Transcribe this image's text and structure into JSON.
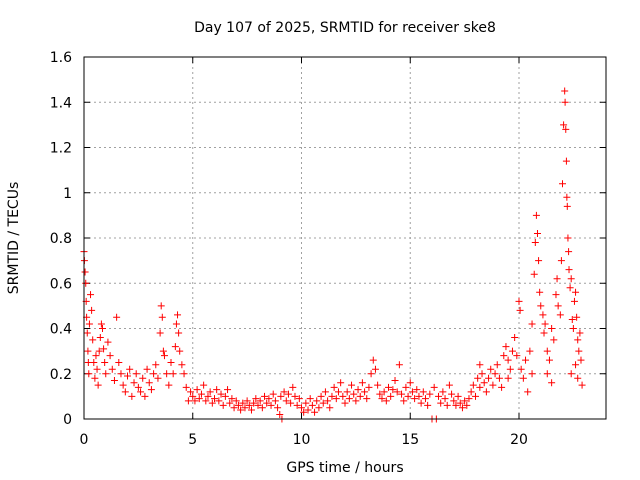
{
  "chart_data": {
    "type": "scatter",
    "title": "Day 107 of 2025, SRMTID for receiver ske8",
    "xlabel": "GPS time / hours",
    "ylabel": "SRMTID / TECUs",
    "xlim": [
      0,
      24
    ],
    "ylim": [
      0,
      1.6
    ],
    "xticks": [
      0,
      5,
      10,
      15,
      20
    ],
    "xtick_labels": [
      "0",
      "5",
      "10",
      "15",
      "20"
    ],
    "yticks": [
      0,
      0.2,
      0.4,
      0.6,
      0.8,
      1,
      1.2,
      1.4,
      1.6
    ],
    "ytick_labels": [
      "0",
      "0.2",
      "0.4",
      "0.6",
      "0.8",
      "1",
      "1.2",
      "1.4",
      "1.6"
    ],
    "grid": true,
    "marker": "+",
    "color": "#ff0000",
    "series": [
      {
        "name": "SRMTID",
        "points": [
          [
            0.0,
            0.74
          ],
          [
            0.02,
            0.7
          ],
          [
            0.05,
            0.65
          ],
          [
            0.08,
            0.6
          ],
          [
            0.1,
            0.52
          ],
          [
            0.12,
            0.45
          ],
          [
            0.15,
            0.38
          ],
          [
            0.18,
            0.3
          ],
          [
            0.2,
            0.25
          ],
          [
            0.22,
            0.2
          ],
          [
            0.25,
            0.42
          ],
          [
            0.3,
            0.55
          ],
          [
            0.35,
            0.48
          ],
          [
            0.4,
            0.35
          ],
          [
            0.45,
            0.25
          ],
          [
            0.5,
            0.18
          ],
          [
            0.55,
            0.28
          ],
          [
            0.6,
            0.22
          ],
          [
            0.65,
            0.15
          ],
          [
            0.7,
            0.3
          ],
          [
            0.75,
            0.36
          ],
          [
            0.8,
            0.42
          ],
          [
            0.85,
            0.4
          ],
          [
            0.9,
            0.31
          ],
          [
            0.95,
            0.25
          ],
          [
            1.0,
            0.2
          ],
          [
            1.1,
            0.34
          ],
          [
            1.2,
            0.28
          ],
          [
            1.3,
            0.22
          ],
          [
            1.4,
            0.17
          ],
          [
            1.5,
            0.45
          ],
          [
            1.6,
            0.25
          ],
          [
            1.7,
            0.2
          ],
          [
            1.8,
            0.15
          ],
          [
            1.9,
            0.12
          ],
          [
            2.0,
            0.19
          ],
          [
            2.1,
            0.22
          ],
          [
            2.2,
            0.1
          ],
          [
            2.3,
            0.16
          ],
          [
            2.4,
            0.2
          ],
          [
            2.5,
            0.14
          ],
          [
            2.6,
            0.12
          ],
          [
            2.7,
            0.18
          ],
          [
            2.8,
            0.1
          ],
          [
            2.9,
            0.22
          ],
          [
            3.0,
            0.16
          ],
          [
            3.1,
            0.13
          ],
          [
            3.2,
            0.2
          ],
          [
            3.3,
            0.24
          ],
          [
            3.4,
            0.18
          ],
          [
            3.5,
            0.38
          ],
          [
            3.55,
            0.5
          ],
          [
            3.6,
            0.45
          ],
          [
            3.65,
            0.3
          ],
          [
            3.7,
            0.28
          ],
          [
            3.8,
            0.2
          ],
          [
            3.9,
            0.15
          ],
          [
            4.0,
            0.25
          ],
          [
            4.1,
            0.2
          ],
          [
            4.2,
            0.32
          ],
          [
            4.25,
            0.42
          ],
          [
            4.3,
            0.46
          ],
          [
            4.35,
            0.38
          ],
          [
            4.4,
            0.3
          ],
          [
            4.5,
            0.24
          ],
          [
            4.6,
            0.2
          ],
          [
            4.7,
            0.14
          ],
          [
            4.8,
            0.08
          ],
          [
            4.9,
            0.12
          ],
          [
            5.0,
            0.1
          ],
          [
            5.1,
            0.08
          ],
          [
            5.2,
            0.13
          ],
          [
            5.3,
            0.09
          ],
          [
            5.4,
            0.11
          ],
          [
            5.5,
            0.15
          ],
          [
            5.6,
            0.08
          ],
          [
            5.7,
            0.1
          ],
          [
            5.8,
            0.12
          ],
          [
            5.9,
            0.07
          ],
          [
            6.0,
            0.09
          ],
          [
            6.1,
            0.13
          ],
          [
            6.2,
            0.08
          ],
          [
            6.3,
            0.11
          ],
          [
            6.4,
            0.06
          ],
          [
            6.5,
            0.1
          ],
          [
            6.6,
            0.13
          ],
          [
            6.7,
            0.07
          ],
          [
            6.8,
            0.09
          ],
          [
            6.9,
            0.05
          ],
          [
            7.0,
            0.08
          ],
          [
            7.1,
            0.06
          ],
          [
            7.2,
            0.04
          ],
          [
            7.3,
            0.07
          ],
          [
            7.4,
            0.05
          ],
          [
            7.5,
            0.08
          ],
          [
            7.6,
            0.06
          ],
          [
            7.7,
            0.04
          ],
          [
            7.8,
            0.07
          ],
          [
            7.9,
            0.09
          ],
          [
            8.0,
            0.06
          ],
          [
            8.1,
            0.08
          ],
          [
            8.2,
            0.05
          ],
          [
            8.3,
            0.1
          ],
          [
            8.4,
            0.07
          ],
          [
            8.5,
            0.09
          ],
          [
            8.6,
            0.06
          ],
          [
            8.7,
            0.11
          ],
          [
            8.8,
            0.08
          ],
          [
            8.9,
            0.05
          ],
          [
            9.0,
            0.02
          ],
          [
            9.05,
            0.1
          ],
          [
            9.1,
            0.0
          ],
          [
            9.2,
            0.12
          ],
          [
            9.3,
            0.08
          ],
          [
            9.4,
            0.11
          ],
          [
            9.5,
            0.07
          ],
          [
            9.6,
            0.14
          ],
          [
            9.7,
            0.1
          ],
          [
            9.8,
            0.06
          ],
          [
            9.9,
            0.09
          ],
          [
            10.0,
            0.05
          ],
          [
            10.1,
            0.03
          ],
          [
            10.2,
            0.07
          ],
          [
            10.3,
            0.04
          ],
          [
            10.4,
            0.09
          ],
          [
            10.5,
            0.06
          ],
          [
            10.6,
            0.03
          ],
          [
            10.7,
            0.08
          ],
          [
            10.8,
            0.05
          ],
          [
            10.9,
            0.1
          ],
          [
            11.0,
            0.07
          ],
          [
            11.1,
            0.12
          ],
          [
            11.2,
            0.08
          ],
          [
            11.3,
            0.05
          ],
          [
            11.4,
            0.1
          ],
          [
            11.5,
            0.14
          ],
          [
            11.6,
            0.09
          ],
          [
            11.7,
            0.12
          ],
          [
            11.8,
            0.16
          ],
          [
            11.9,
            0.1
          ],
          [
            12.0,
            0.07
          ],
          [
            12.1,
            0.12
          ],
          [
            12.2,
            0.09
          ],
          [
            12.3,
            0.15
          ],
          [
            12.4,
            0.11
          ],
          [
            12.5,
            0.08
          ],
          [
            12.6,
            0.13
          ],
          [
            12.7,
            0.1
          ],
          [
            12.8,
            0.16
          ],
          [
            12.9,
            0.12
          ],
          [
            13.0,
            0.09
          ],
          [
            13.1,
            0.14
          ],
          [
            13.2,
            0.2
          ],
          [
            13.3,
            0.26
          ],
          [
            13.4,
            0.22
          ],
          [
            13.5,
            0.15
          ],
          [
            13.6,
            0.11
          ],
          [
            13.7,
            0.09
          ],
          [
            13.8,
            0.12
          ],
          [
            13.9,
            0.08
          ],
          [
            14.0,
            0.14
          ],
          [
            14.1,
            0.1
          ],
          [
            14.2,
            0.13
          ],
          [
            14.3,
            0.17
          ],
          [
            14.4,
            0.12
          ],
          [
            14.5,
            0.24
          ],
          [
            14.6,
            0.11
          ],
          [
            14.7,
            0.08
          ],
          [
            14.8,
            0.14
          ],
          [
            14.9,
            0.1
          ],
          [
            15.0,
            0.16
          ],
          [
            15.1,
            0.12
          ],
          [
            15.2,
            0.09
          ],
          [
            15.3,
            0.13
          ],
          [
            15.4,
            0.1
          ],
          [
            15.5,
            0.07
          ],
          [
            15.6,
            0.12
          ],
          [
            15.7,
            0.09
          ],
          [
            15.8,
            0.06
          ],
          [
            15.9,
            0.11
          ],
          [
            16.0,
            0.0
          ],
          [
            16.2,
            0.0
          ],
          [
            16.1,
            0.14
          ],
          [
            16.3,
            0.1
          ],
          [
            16.4,
            0.07
          ],
          [
            16.5,
            0.12
          ],
          [
            16.6,
            0.09
          ],
          [
            16.7,
            0.06
          ],
          [
            16.8,
            0.15
          ],
          [
            16.9,
            0.11
          ],
          [
            17.0,
            0.08
          ],
          [
            17.1,
            0.06
          ],
          [
            17.2,
            0.1
          ],
          [
            17.3,
            0.07
          ],
          [
            17.4,
            0.05
          ],
          [
            17.5,
            0.08
          ],
          [
            17.6,
            0.06
          ],
          [
            17.7,
            0.09
          ],
          [
            17.8,
            0.12
          ],
          [
            17.9,
            0.15
          ],
          [
            18.0,
            0.1
          ],
          [
            18.1,
            0.18
          ],
          [
            18.2,
            0.14
          ],
          [
            18.3,
            0.2
          ],
          [
            18.4,
            0.16
          ],
          [
            18.5,
            0.12
          ],
          [
            18.6,
            0.18
          ],
          [
            18.7,
            0.22
          ],
          [
            18.8,
            0.15
          ],
          [
            18.9,
            0.2
          ],
          [
            19.0,
            0.24
          ],
          [
            19.1,
            0.18
          ],
          [
            19.2,
            0.14
          ],
          [
            19.3,
            0.28
          ],
          [
            19.4,
            0.32
          ],
          [
            19.5,
            0.26
          ],
          [
            19.6,
            0.22
          ],
          [
            19.7,
            0.3
          ],
          [
            19.8,
            0.36
          ],
          [
            19.9,
            0.28
          ],
          [
            20.0,
            0.52
          ],
          [
            20.05,
            0.48
          ],
          [
            20.1,
            0.22
          ],
          [
            20.2,
            0.18
          ],
          [
            20.3,
            0.26
          ],
          [
            20.4,
            0.12
          ],
          [
            20.5,
            0.3
          ],
          [
            20.6,
            0.42
          ],
          [
            20.7,
            0.64
          ],
          [
            20.75,
            0.78
          ],
          [
            20.8,
            0.9
          ],
          [
            20.85,
            0.82
          ],
          [
            20.9,
            0.7
          ],
          [
            20.95,
            0.56
          ],
          [
            21.0,
            0.5
          ],
          [
            21.1,
            0.46
          ],
          [
            21.15,
            0.38
          ],
          [
            21.2,
            0.42
          ],
          [
            21.3,
            0.3
          ],
          [
            21.4,
            0.26
          ],
          [
            21.5,
            0.4
          ],
          [
            21.6,
            0.35
          ],
          [
            21.7,
            0.55
          ],
          [
            21.75,
            0.62
          ],
          [
            21.8,
            0.5
          ],
          [
            21.9,
            0.46
          ],
          [
            21.95,
            0.7
          ],
          [
            22.0,
            1.04
          ],
          [
            22.05,
            1.3
          ],
          [
            22.1,
            1.45
          ],
          [
            22.12,
            1.4
          ],
          [
            22.15,
            1.28
          ],
          [
            22.18,
            1.14
          ],
          [
            22.2,
            0.98
          ],
          [
            22.22,
            0.94
          ],
          [
            22.25,
            0.8
          ],
          [
            22.28,
            0.74
          ],
          [
            22.3,
            0.66
          ],
          [
            22.35,
            0.58
          ],
          [
            22.4,
            0.62
          ],
          [
            22.45,
            0.44
          ],
          [
            22.5,
            0.4
          ],
          [
            22.55,
            0.52
          ],
          [
            22.6,
            0.56
          ],
          [
            22.65,
            0.45
          ],
          [
            22.7,
            0.35
          ],
          [
            22.75,
            0.3
          ],
          [
            22.8,
            0.38
          ],
          [
            22.85,
            0.26
          ],
          [
            22.9,
            0.15
          ],
          [
            22.4,
            0.2
          ],
          [
            22.6,
            0.24
          ],
          [
            22.7,
            0.18
          ],
          [
            21.3,
            0.2
          ],
          [
            21.5,
            0.16
          ],
          [
            20.6,
            0.2
          ],
          [
            19.5,
            0.18
          ],
          [
            18.2,
            0.24
          ]
        ]
      }
    ]
  }
}
